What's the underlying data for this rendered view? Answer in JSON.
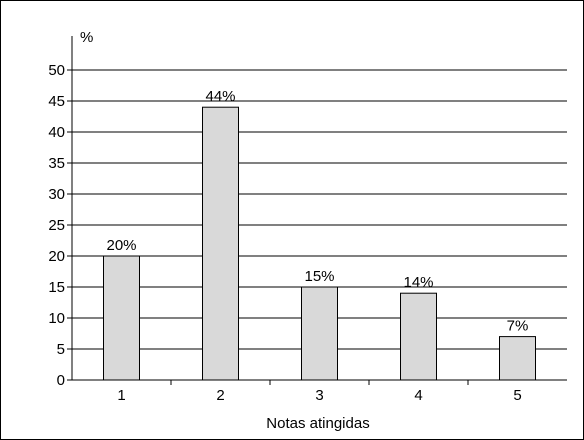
{
  "chart_data": {
    "type": "bar",
    "categories": [
      "1",
      "2",
      "3",
      "4",
      "5"
    ],
    "values": [
      20,
      44,
      15,
      14,
      7
    ],
    "data_labels": [
      "20%",
      "44%",
      "15%",
      "14%",
      "7%"
    ],
    "title": "",
    "xlabel": "Notas atingidas",
    "ylabel": "%",
    "ylim": [
      0,
      50
    ],
    "yticks": [
      0,
      5,
      10,
      15,
      20,
      25,
      30,
      35,
      40,
      45,
      50
    ],
    "grid": true,
    "legend": "none",
    "bar_color": "#d9d9d9",
    "bar_edge_color": "#000000"
  }
}
